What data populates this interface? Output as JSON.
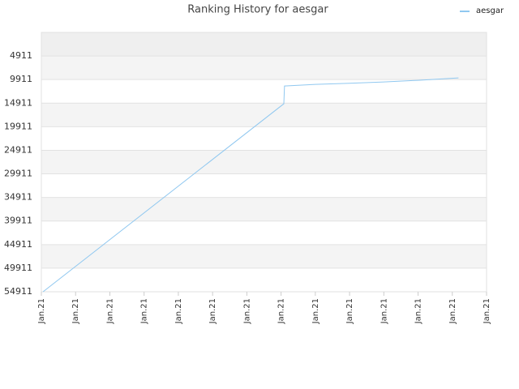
{
  "chart_data": {
    "type": "line",
    "title": "Ranking History for aesgar",
    "series": [
      {
        "name": "aesgar",
        "color": "#90c8f0",
        "x": [
          0.05,
          7.08,
          7.1,
          8,
          9,
          10,
          11,
          12.18
        ],
        "values": [
          54911,
          15050,
          11270,
          10925,
          10700,
          10410,
          10065,
          9550
        ]
      }
    ],
    "xlim": [
      0,
      13
    ],
    "xticks": [
      {
        "value": 0,
        "label": "Jan.21"
      },
      {
        "value": 1,
        "label": "Jan.21"
      },
      {
        "value": 2,
        "label": "Jan.21"
      },
      {
        "value": 3,
        "label": "Jan.21"
      },
      {
        "value": 4,
        "label": "Jan.21"
      },
      {
        "value": 5,
        "label": "Jan.21"
      },
      {
        "value": 6,
        "label": "Jan.21"
      },
      {
        "value": 7,
        "label": "Jan.21"
      },
      {
        "value": 8,
        "label": "Jan.21"
      },
      {
        "value": 9,
        "label": "Jan.21"
      },
      {
        "value": 10,
        "label": "Jan.21"
      },
      {
        "value": 11,
        "label": "Jan.21"
      },
      {
        "value": 12,
        "label": "Jan.21"
      },
      {
        "value": 13,
        "label": "Jan.21"
      }
    ],
    "ylim": [
      -89,
      54911
    ],
    "invert_y": true,
    "yticks": [
      4911,
      9911,
      14911,
      19911,
      24911,
      29911,
      34911,
      39911,
      44911,
      49911,
      54911
    ],
    "grid": true,
    "legend": "top-right"
  }
}
